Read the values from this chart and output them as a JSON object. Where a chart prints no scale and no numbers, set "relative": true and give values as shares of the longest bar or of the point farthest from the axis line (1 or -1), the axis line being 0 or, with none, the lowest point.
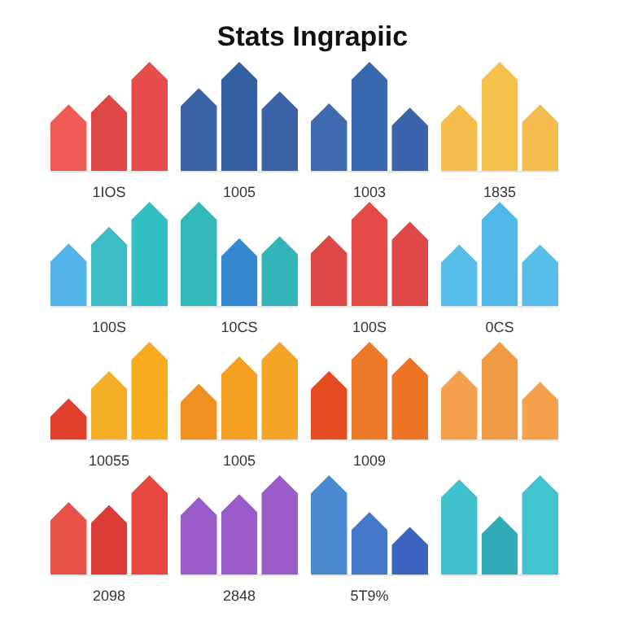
{
  "chart_data": [
    {
      "type": "other",
      "title": "Stats Ingrapiic"
    },
    {
      "type": "bar",
      "relative": true,
      "categories": [
        null,
        null,
        null
      ],
      "values": [
        0.61,
        0.7,
        1
      ],
      "colors": [
        "#ef5b55",
        "#e04848",
        "#e54c4a"
      ],
      "xlabel": "1IOS"
    },
    {
      "type": "bar",
      "relative": true,
      "categories": [
        null,
        null,
        null
      ],
      "values": [
        0.76,
        1,
        0.73
      ],
      "colors": [
        "#3a64a6",
        "#355fa3",
        "#3a64a6"
      ],
      "xlabel": "1005"
    },
    {
      "type": "bar",
      "relative": true,
      "categories": [
        null,
        null,
        null
      ],
      "values": [
        0.62,
        1,
        0.58
      ],
      "colors": [
        "#3f6cb0",
        "#3a68b0",
        "#3a65aa"
      ],
      "xlabel": "1003"
    },
    {
      "type": "bar",
      "relative": true,
      "categories": [
        null,
        null,
        null
      ],
      "values": [
        0.61,
        1,
        0.61
      ],
      "colors": [
        "#f4bd4e",
        "#f5c04a",
        "#f4bd4e"
      ],
      "xlabel": "1835"
    },
    {
      "type": "bar",
      "relative": true,
      "categories": [
        null,
        null,
        null
      ],
      "values": [
        0.6,
        0.76,
        1
      ],
      "colors": [
        "#52b4e8",
        "#3cbcc4",
        "#33c0c4"
      ],
      "xlabel": "100S"
    },
    {
      "type": "bar",
      "relative": true,
      "categories": [
        null,
        null,
        null
      ],
      "values": [
        1,
        0.65,
        0.67
      ],
      "colors": [
        "#33b8b8",
        "#3388d0",
        "#33b4b8"
      ],
      "xlabel": "10CS"
    },
    {
      "type": "bar",
      "relative": true,
      "categories": [
        null,
        null,
        null
      ],
      "values": [
        0.68,
        1,
        0.81
      ],
      "colors": [
        "#e04848",
        "#e44a46",
        "#e04848"
      ],
      "xlabel": "100S"
    },
    {
      "type": "bar",
      "relative": true,
      "categories": [
        null,
        null,
        null
      ],
      "values": [
        0.59,
        1,
        0.59
      ],
      "colors": [
        "#58bde8",
        "#50b8e8",
        "#58bde8"
      ],
      "xlabel": "0CS"
    },
    {
      "type": "bar",
      "relative": true,
      "categories": [
        null,
        null,
        null
      ],
      "values": [
        0.42,
        0.7,
        1
      ],
      "colors": [
        "#e0402c",
        "#f5ae28",
        "#f7ac20"
      ],
      "xlabel": "10055"
    },
    {
      "type": "bar",
      "relative": true,
      "categories": [
        null,
        null,
        null
      ],
      "values": [
        0.57,
        0.85,
        1
      ],
      "colors": [
        "#f09020",
        "#f5a020",
        "#f5a426"
      ],
      "xlabel": "1005"
    },
    {
      "type": "bar",
      "relative": true,
      "categories": [
        null,
        null,
        null
      ],
      "values": [
        0.7,
        1,
        0.84
      ],
      "colors": [
        "#e54c22",
        "#ec7a28",
        "#ec7424"
      ],
      "xlabel": "1009"
    },
    {
      "type": "bar",
      "relative": true,
      "categories": [
        null,
        null,
        null
      ],
      "values": [
        0.71,
        1,
        0.59
      ],
      "colors": [
        "#f4a04c",
        "#f19a44",
        "#f4a04c"
      ]
    },
    {
      "type": "bar",
      "relative": true,
      "categories": [
        null,
        null,
        null
      ],
      "values": [
        0.73,
        0.7,
        1
      ],
      "colors": [
        "#e9524a",
        "#dc3c38",
        "#e64840"
      ],
      "xlabel": "2098"
    },
    {
      "type": "bar",
      "relative": true,
      "categories": [
        null,
        null,
        null
      ],
      "values": [
        0.78,
        0.81,
        1
      ],
      "colors": [
        "#9a5cc8",
        "#9a5cc8",
        "#9a5cc8"
      ],
      "xlabel": "2848"
    },
    {
      "type": "bar",
      "relative": true,
      "categories": [
        null,
        null,
        null
      ],
      "values": [
        1,
        0.63,
        0.48
      ],
      "colors": [
        "#4a88d0",
        "#4478c8",
        "#3a64c0"
      ],
      "xlabel": "5T9%"
    },
    {
      "type": "bar",
      "relative": true,
      "categories": [
        null,
        null,
        null
      ],
      "values": [
        0.96,
        0.59,
        1
      ],
      "colors": [
        "#40c0cc",
        "#30acb8",
        "#40c4d0"
      ]
    }
  ]
}
